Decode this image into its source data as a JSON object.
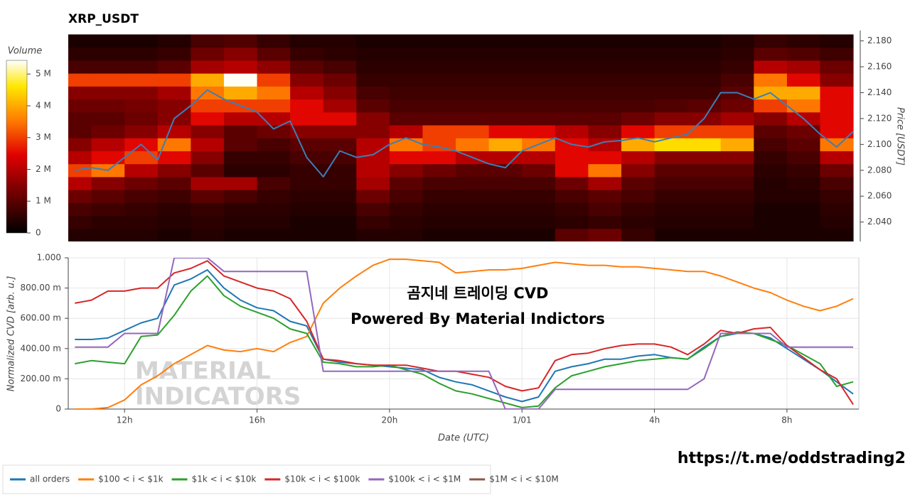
{
  "chart_data": [
    {
      "type": "heatmap",
      "title": "XRP_USDT",
      "ylabel": "Price [USDT]",
      "xlim": [
        10.3,
        34.17
      ],
      "ylim": [
        2.025,
        2.188
      ],
      "yticks": [
        {
          "value": 2.04,
          "label": "2.040"
        },
        {
          "value": 2.06,
          "label": "2.060"
        },
        {
          "value": 2.08,
          "label": "2.080"
        },
        {
          "value": 2.1,
          "label": "2.100"
        },
        {
          "value": 2.12,
          "label": "2.120"
        },
        {
          "value": 2.14,
          "label": "2.140"
        },
        {
          "value": 2.16,
          "label": "2.160"
        },
        {
          "value": 2.18,
          "label": "2.180"
        }
      ],
      "xbins": [
        10,
        11,
        12,
        13,
        14,
        15,
        16,
        17,
        18,
        19,
        20,
        21,
        22,
        23,
        24,
        25,
        26,
        27,
        28,
        29,
        30,
        31,
        32,
        33,
        34
      ],
      "ybins": [
        2.025,
        2.035,
        2.045,
        2.055,
        2.065,
        2.075,
        2.085,
        2.095,
        2.105,
        2.115,
        2.125,
        2.135,
        2.145,
        2.155,
        2.165,
        2.175,
        2.185
      ],
      "z": [
        [
          400000,
          400000,
          400000,
          300000,
          400000,
          300000,
          300000,
          300000,
          300000,
          400000,
          400000,
          300000,
          300000,
          300000,
          300000,
          1000000,
          1200000,
          600000,
          300000,
          300000,
          300000,
          300000,
          300000,
          300000
        ],
        [
          600000,
          500000,
          500000,
          400000,
          500000,
          400000,
          400000,
          300000,
          300000,
          600000,
          500000,
          400000,
          400000,
          400000,
          400000,
          500000,
          600000,
          500000,
          400000,
          400000,
          400000,
          300000,
          300000,
          400000
        ],
        [
          800000,
          700000,
          600000,
          500000,
          600000,
          500000,
          500000,
          400000,
          400000,
          800000,
          600000,
          500000,
          500000,
          500000,
          500000,
          600000,
          800000,
          600000,
          500000,
          500000,
          500000,
          300000,
          300000,
          500000
        ],
        [
          1200000,
          1000000,
          800000,
          700000,
          1000000,
          800000,
          600000,
          500000,
          500000,
          1200000,
          800000,
          600000,
          600000,
          600000,
          600000,
          800000,
          1000000,
          800000,
          600000,
          600000,
          600000,
          400000,
          400000,
          600000
        ],
        [
          2000000,
          1500000,
          1200000,
          1000000,
          1800000,
          1800000,
          800000,
          600000,
          600000,
          1800000,
          1000000,
          800000,
          800000,
          800000,
          800000,
          1200000,
          1800000,
          1000000,
          800000,
          800000,
          800000,
          400000,
          500000,
          800000
        ],
        [
          3000000,
          3500000,
          2000000,
          1500000,
          1000000,
          500000,
          500000,
          600000,
          600000,
          2000000,
          1500000,
          1200000,
          1000000,
          1000000,
          1200000,
          2500000,
          3500000,
          1500000,
          1000000,
          1000000,
          1000000,
          500000,
          600000,
          1200000
        ],
        [
          2000000,
          2500000,
          3000000,
          2500000,
          1500000,
          600000,
          600000,
          800000,
          800000,
          2000000,
          2500000,
          2500000,
          2000000,
          2000000,
          2000000,
          2500000,
          2500000,
          2000000,
          1500000,
          1500000,
          1500000,
          600000,
          800000,
          2000000
        ],
        [
          1500000,
          2000000,
          2500000,
          3500000,
          2000000,
          1000000,
          800000,
          1000000,
          1000000,
          2000000,
          3500000,
          3000000,
          3500000,
          4000000,
          3500000,
          2500000,
          2000000,
          4000000,
          4500000,
          4500000,
          4000000,
          800000,
          1000000,
          3500000
        ],
        [
          1000000,
          1200000,
          1500000,
          2000000,
          1500000,
          1000000,
          1200000,
          1500000,
          1500000,
          1500000,
          2000000,
          3000000,
          3000000,
          2500000,
          2500000,
          2000000,
          1500000,
          2500000,
          3000000,
          3000000,
          3000000,
          1000000,
          1200000,
          2500000
        ],
        [
          1000000,
          1000000,
          1200000,
          1500000,
          2500000,
          2000000,
          2000000,
          2500000,
          2500000,
          1500000,
          1000000,
          1000000,
          1000000,
          1000000,
          1000000,
          1000000,
          1000000,
          1200000,
          1500000,
          1500000,
          1800000,
          1500000,
          2000000,
          2500000
        ],
        [
          1200000,
          1200000,
          1300000,
          1500000,
          3000000,
          3000000,
          3000000,
          2500000,
          1800000,
          1000000,
          800000,
          800000,
          800000,
          800000,
          800000,
          800000,
          800000,
          800000,
          900000,
          1000000,
          1200000,
          3000000,
          3500000,
          2500000
        ],
        [
          1500000,
          1500000,
          1500000,
          1800000,
          3500000,
          4000000,
          3500000,
          2000000,
          1500000,
          800000,
          700000,
          700000,
          700000,
          700000,
          700000,
          700000,
          700000,
          700000,
          700000,
          700000,
          1000000,
          4000000,
          4000000,
          2500000
        ],
        [
          3000000,
          3000000,
          3000000,
          3000000,
          4000000,
          5400000,
          3000000,
          1500000,
          1200000,
          600000,
          600000,
          600000,
          600000,
          600000,
          600000,
          600000,
          600000,
          600000,
          600000,
          600000,
          800000,
          3500000,
          2500000,
          1500000
        ],
        [
          800000,
          800000,
          800000,
          1000000,
          1800000,
          2000000,
          1600000,
          1000000,
          800000,
          500000,
          500000,
          500000,
          500000,
          500000,
          500000,
          500000,
          500000,
          500000,
          500000,
          500000,
          600000,
          2000000,
          1800000,
          1200000
        ],
        [
          500000,
          500000,
          500000,
          600000,
          1200000,
          1500000,
          1000000,
          600000,
          500000,
          400000,
          400000,
          400000,
          400000,
          400000,
          400000,
          400000,
          400000,
          400000,
          400000,
          400000,
          500000,
          1000000,
          900000,
          700000
        ],
        [
          300000,
          300000,
          300000,
          400000,
          800000,
          900000,
          600000,
          400000,
          400000,
          300000,
          300000,
          300000,
          300000,
          300000,
          300000,
          300000,
          300000,
          300000,
          300000,
          300000,
          400000,
          600000,
          500000,
          400000
        ]
      ],
      "colorbar": {
        "title": "Volume",
        "lim": [
          0,
          5430000
        ],
        "ticks": [
          0,
          {
            "value": 1000000,
            "label": "1 M"
          },
          {
            "value": 2000000,
            "label": "2 M"
          },
          {
            "value": 3000000,
            "label": "3 M"
          },
          {
            "value": 4000000,
            "label": "4 M"
          },
          {
            "value": 5000000,
            "label": "5 M"
          }
        ],
        "colorscale": [
          [
            0,
            "#000000"
          ],
          [
            0.25,
            "#7a0000"
          ],
          [
            0.45,
            "#e00000"
          ],
          [
            0.65,
            "#ff7a00"
          ],
          [
            0.85,
            "#ffe800"
          ],
          [
            1,
            "#ffffff"
          ]
        ]
      },
      "x": [
        10.5,
        11,
        11.5,
        12,
        12.5,
        13,
        13.5,
        14,
        14.5,
        15,
        15.5,
        16,
        16.5,
        17,
        17.5,
        18,
        18.5,
        19,
        19.5,
        20,
        20.5,
        21,
        21.5,
        22,
        22.5,
        23,
        23.5,
        24,
        24.5,
        25,
        25.5,
        26,
        26.5,
        27,
        27.5,
        28,
        28.5,
        29,
        29.5,
        30,
        30.5,
        31,
        31.5,
        32,
        32.5,
        33,
        33.5,
        34
      ],
      "series": [
        {
          "color": "#3b7fb8",
          "values": [
            2.08,
            2.082,
            2.08,
            2.09,
            2.1,
            2.088,
            2.12,
            2.13,
            2.142,
            2.135,
            2.13,
            2.125,
            2.112,
            2.118,
            2.09,
            2.075,
            2.095,
            2.09,
            2.092,
            2.1,
            2.105,
            2.1,
            2.098,
            2.095,
            2.09,
            2.085,
            2.082,
            2.095,
            2.1,
            2.105,
            2.1,
            2.098,
            2.102,
            2.103,
            2.105,
            2.102,
            2.105,
            2.108,
            2.12,
            2.14,
            2.14,
            2.135,
            2.14,
            2.13,
            2.12,
            2.108,
            2.098,
            2.11
          ]
        }
      ]
    },
    {
      "type": "line",
      "ylabel": "Normalized CVD [arb. u.]",
      "xlabel": "Date (UTC)",
      "xlim": [
        10.3,
        34.17
      ],
      "ylim": [
        0,
        1
      ],
      "grid": true,
      "xticks": [
        {
          "value": 12,
          "label": "12h"
        },
        {
          "value": 16,
          "label": "16h"
        },
        {
          "value": 20,
          "label": "20h"
        },
        {
          "value": 24,
          "label": "1/01"
        },
        {
          "value": 28,
          "label": "4h"
        },
        {
          "value": 32,
          "label": "8h"
        }
      ],
      "yticks": [
        0,
        {
          "value": 0.2,
          "label": "200.00 m"
        },
        {
          "value": 0.4,
          "label": "400.00 m"
        },
        {
          "value": 0.6,
          "label": "600.00 m"
        },
        {
          "value": 0.8,
          "label": "800.00 m"
        },
        {
          "value": 1,
          "label": "1.000"
        }
      ],
      "annotations": [
        "곰지네 트레이딩 CVD",
        "Powered By Material Indictors"
      ],
      "watermark": [
        "MATERIAL",
        "INDICATORS"
      ],
      "x": [
        10.5,
        11,
        11.5,
        12,
        12.5,
        13,
        13.5,
        14,
        14.5,
        15,
        15.5,
        16,
        16.5,
        17,
        17.5,
        18,
        18.5,
        19,
        19.5,
        20,
        20.5,
        21,
        21.5,
        22,
        22.5,
        23,
        23.5,
        24,
        24.5,
        25,
        25.5,
        26,
        26.5,
        27,
        27.5,
        28,
        28.5,
        29,
        29.5,
        30,
        30.5,
        31,
        31.5,
        32,
        32.5,
        33,
        33.5,
        34
      ],
      "series": [
        {
          "name": "all orders",
          "color": "#1f77b4",
          "values": [
            0.46,
            0.46,
            0.47,
            0.52,
            0.57,
            0.6,
            0.82,
            0.86,
            0.92,
            0.8,
            0.72,
            0.67,
            0.65,
            0.58,
            0.55,
            0.33,
            0.31,
            0.3,
            0.29,
            0.28,
            0.27,
            0.26,
            0.21,
            0.18,
            0.16,
            0.12,
            0.08,
            0.05,
            0.08,
            0.25,
            0.28,
            0.3,
            0.33,
            0.33,
            0.35,
            0.36,
            0.34,
            0.33,
            0.41,
            0.48,
            0.5,
            0.5,
            0.47,
            0.4,
            0.33,
            0.26,
            0.18,
            0.1
          ]
        },
        {
          "name": "$100 < i < $1k",
          "color": "#ff7f0e",
          "values": [
            0,
            0,
            0.01,
            0.06,
            0.16,
            0.22,
            0.3,
            0.36,
            0.42,
            0.39,
            0.38,
            0.4,
            0.38,
            0.44,
            0.48,
            0.7,
            0.8,
            0.88,
            0.95,
            0.99,
            0.99,
            0.98,
            0.97,
            0.9,
            0.91,
            0.92,
            0.92,
            0.93,
            0.95,
            0.97,
            0.96,
            0.95,
            0.95,
            0.94,
            0.94,
            0.93,
            0.92,
            0.91,
            0.91,
            0.88,
            0.84,
            0.8,
            0.77,
            0.72,
            0.68,
            0.65,
            0.68,
            0.73
          ]
        },
        {
          "name": "$1k < i < $10k",
          "color": "#2ca02c",
          "values": [
            0.3,
            0.32,
            0.31,
            0.3,
            0.48,
            0.49,
            0.62,
            0.78,
            0.88,
            0.75,
            0.68,
            0.64,
            0.6,
            0.53,
            0.5,
            0.31,
            0.3,
            0.28,
            0.28,
            0.29,
            0.26,
            0.23,
            0.17,
            0.12,
            0.1,
            0.07,
            0.04,
            0.01,
            0.02,
            0.14,
            0.22,
            0.25,
            0.28,
            0.3,
            0.32,
            0.33,
            0.34,
            0.33,
            0.4,
            0.48,
            0.51,
            0.5,
            0.46,
            0.42,
            0.36,
            0.3,
            0.15,
            0.18
          ]
        },
        {
          "name": "$10k < i < $100k",
          "color": "#d62728",
          "values": [
            0.7,
            0.72,
            0.78,
            0.78,
            0.8,
            0.8,
            0.9,
            0.93,
            0.98,
            0.88,
            0.84,
            0.8,
            0.78,
            0.73,
            0.58,
            0.33,
            0.32,
            0.3,
            0.29,
            0.29,
            0.29,
            0.27,
            0.25,
            0.25,
            0.23,
            0.21,
            0.15,
            0.12,
            0.14,
            0.32,
            0.36,
            0.37,
            0.4,
            0.42,
            0.43,
            0.43,
            0.41,
            0.36,
            0.43,
            0.52,
            0.5,
            0.53,
            0.54,
            0.42,
            0.34,
            0.26,
            0.2,
            0.03
          ]
        },
        {
          "name": "$100k < i < $1M",
          "color": "#9467bd",
          "values": [
            0.41,
            0.41,
            0.41,
            0.5,
            0.5,
            0.5,
            1,
            1,
            1,
            0.91,
            0.91,
            0.91,
            0.91,
            0.91,
            0.91,
            0.25,
            0.25,
            0.25,
            0.25,
            0.25,
            0.25,
            0.25,
            0.25,
            0.25,
            0.25,
            0.25,
            0,
            0,
            0,
            0.13,
            0.13,
            0.13,
            0.13,
            0.13,
            0.13,
            0.13,
            0.13,
            0.13,
            0.2,
            0.5,
            0.5,
            0.5,
            0.5,
            0.41,
            0.41,
            0.41,
            0.41,
            0.41
          ]
        },
        {
          "name": "$1M < i < $10M",
          "color": "#8c564b",
          "values": [
            null,
            null,
            null,
            null,
            null,
            null,
            null,
            null,
            null,
            null,
            null,
            null,
            null,
            null,
            null,
            null,
            null,
            null,
            null,
            null,
            null,
            null,
            null,
            null,
            null,
            null,
            null,
            null,
            null,
            null,
            null,
            null,
            null,
            null,
            null,
            null,
            null,
            null,
            null,
            null,
            null,
            null,
            null,
            null,
            null,
            null,
            null,
            null
          ]
        }
      ]
    }
  ],
  "footer_link": "https://t.me/oddstrading2"
}
